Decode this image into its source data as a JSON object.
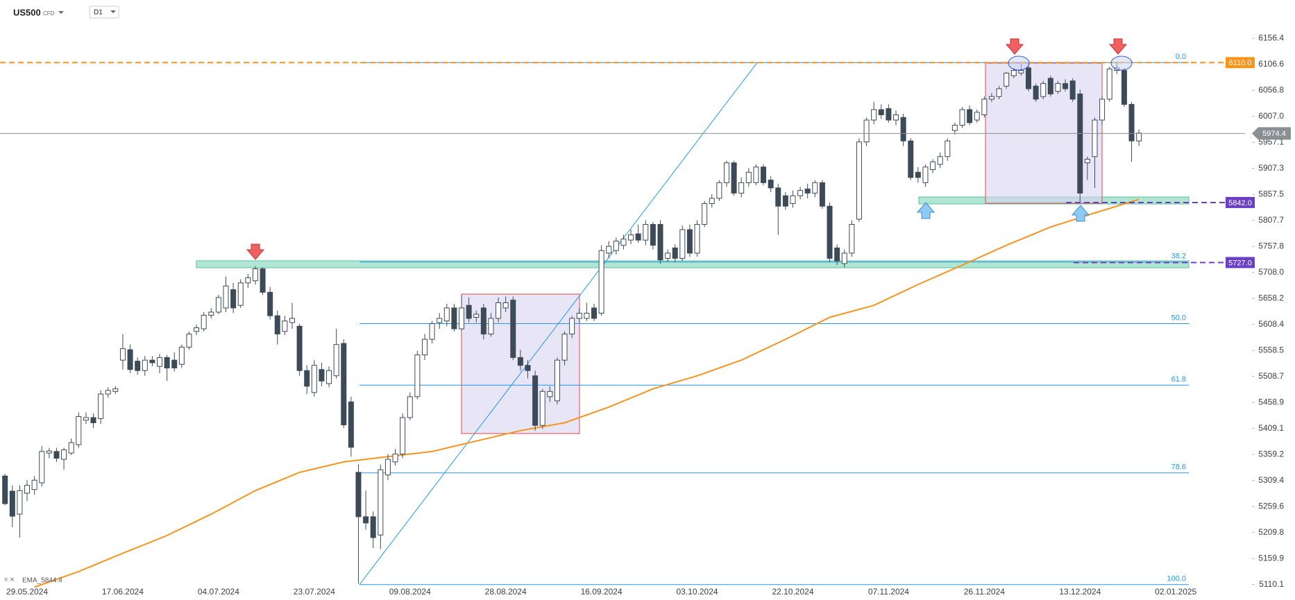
{
  "header": {
    "symbol": "US500",
    "tag": "CFD",
    "timeframe": "D1"
  },
  "chart_data": {
    "type": "candlestick",
    "categories": [
      null,
      null,
      null,
      "29.05.2024",
      null,
      null,
      null,
      null,
      null,
      null,
      null,
      null,
      null,
      null,
      null,
      null,
      "17.06.2024",
      null,
      null,
      null,
      null,
      null,
      null,
      null,
      null,
      null,
      null,
      null,
      null,
      "04.07.2024",
      null,
      null,
      null,
      null,
      null,
      null,
      null,
      null,
      null,
      null,
      null,
      null,
      "23.07.2024",
      null,
      null,
      null,
      null,
      null,
      null,
      null,
      null,
      null,
      null,
      null,
      null,
      "09.08.2024",
      null,
      null,
      null,
      null,
      null,
      null,
      null,
      null,
      null,
      null,
      null,
      null,
      "28.08.2024",
      null,
      null,
      null,
      null,
      null,
      null,
      null,
      null,
      null,
      null,
      null,
      null,
      "16.09.2024",
      null,
      null,
      null,
      null,
      null,
      null,
      null,
      null,
      null,
      null,
      null,
      null,
      "03.10.2024",
      null,
      null,
      null,
      null,
      null,
      null,
      null,
      null,
      null,
      null,
      null,
      null,
      "22.10.2024",
      null,
      null,
      null,
      null,
      null,
      null,
      null,
      null,
      null,
      null,
      null,
      null,
      "07.11.2024",
      null,
      null,
      null,
      null,
      null,
      null,
      null,
      null,
      null,
      null,
      null,
      null,
      "26.11.2024",
      null,
      null,
      null,
      null,
      null,
      null,
      null,
      null,
      null,
      null,
      null,
      null,
      "13.12.2024",
      null,
      null,
      null,
      null,
      null,
      null,
      null,
      null,
      null,
      null,
      null,
      null,
      "02.01.2025"
    ],
    "open": [
      5318,
      5289,
      5245,
      5285,
      5292,
      5305,
      5362,
      5365,
      5350,
      5362,
      5378,
      5425,
      5430,
      5428,
      5475,
      5480,
      5540,
      5560,
      5538,
      5520,
      5540,
      5528,
      5545,
      5540,
      5532,
      5565,
      5595,
      5600,
      5626,
      5632,
      5640,
      5675,
      5645,
      5688,
      5692,
      5715,
      5670,
      5625,
      5595,
      5612,
      5605,
      5520,
      5478,
      5522,
      5495,
      5510,
      5572,
      5460,
      5325,
      5240,
      5240,
      5205,
      5320,
      5345,
      5360,
      5430,
      5470,
      5550,
      5580,
      5612,
      5615,
      5640,
      5600,
      5645,
      5622,
      5640,
      5590,
      5620,
      5640,
      5655,
      5545,
      5530,
      5510,
      5415,
      5470,
      5462,
      5540,
      5590,
      5620,
      5620,
      5640,
      5630,
      5745,
      5750,
      5760,
      5770,
      5782,
      5770,
      5800,
      5800,
      5735,
      5755,
      5735,
      5790,
      5745,
      5800,
      5840,
      5850,
      5880,
      5918,
      5860,
      5880,
      5880,
      5910,
      5885,
      5870,
      5855,
      5840,
      5855,
      5868,
      5860,
      5880,
      5835,
      5755,
      5725,
      5745,
      5810,
      5958,
      6000,
      6020,
      6022,
      6000,
      6005,
      5960,
      5900,
      5880,
      5905,
      5915,
      5930,
      5980,
      5990,
      6020,
      6000,
      6010,
      6040,
      6045,
      6065,
      6085,
      6090,
      6100,
      6065,
      6045,
      6080,
      6055,
      6070,
      6075,
      6050,
      5918,
      5930,
      6000,
      6040,
      6095,
      6095,
      6030,
      5960,
      null,
      null,
      null,
      null,
      null
    ],
    "high": [
      5322,
      5300,
      5300,
      5310,
      5318,
      5375,
      5372,
      5372,
      5372,
      5390,
      5440,
      5440,
      5438,
      5482,
      5488,
      5490,
      5590,
      5570,
      5545,
      5548,
      5548,
      5552,
      5550,
      5555,
      5570,
      5595,
      5608,
      5632,
      5640,
      5665,
      5700,
      5688,
      5695,
      5705,
      5720,
      5718,
      5680,
      5635,
      5625,
      5650,
      5610,
      5530,
      5540,
      5535,
      5528,
      5600,
      5580,
      5470,
      5340,
      5290,
      5250,
      5340,
      5360,
      5370,
      5438,
      5478,
      5558,
      5590,
      5615,
      5630,
      5648,
      5648,
      5665,
      5660,
      5635,
      5648,
      5630,
      5660,
      5662,
      5662,
      5560,
      5540,
      5520,
      5485,
      5490,
      5545,
      5595,
      5625,
      5640,
      5650,
      5648,
      5760,
      5768,
      5775,
      5780,
      5790,
      5800,
      5808,
      5805,
      5808,
      5752,
      5762,
      5798,
      5800,
      5808,
      5845,
      5858,
      5885,
      5922,
      5922,
      5890,
      5908,
      5915,
      5915,
      5892,
      5878,
      5862,
      5865,
      5872,
      5878,
      5885,
      5885,
      5842,
      5762,
      5752,
      5808,
      5965,
      6005,
      6035,
      6030,
      6030,
      6018,
      6012,
      5965,
      5910,
      5915,
      5925,
      5938,
      5965,
      5995,
      6025,
      6028,
      6020,
      6045,
      6052,
      6065,
      6092,
      6100,
      6108,
      6108,
      6070,
      6075,
      6085,
      6075,
      6078,
      6080,
      6058,
      5930,
      6005,
      6045,
      6102,
      6112,
      6100,
      6035,
      5982,
      null,
      null,
      null,
      null,
      null
    ],
    "low": [
      5262,
      5220,
      5200,
      5270,
      5282,
      5298,
      5352,
      5345,
      5330,
      5358,
      5372,
      5418,
      5410,
      5418,
      5468,
      5475,
      5522,
      5515,
      5512,
      5510,
      5528,
      5515,
      5500,
      5518,
      5525,
      5560,
      5588,
      5595,
      5620,
      5628,
      5632,
      5630,
      5640,
      5678,
      5685,
      5665,
      5618,
      5570,
      5588,
      5600,
      5510,
      5475,
      5470,
      5490,
      5488,
      5505,
      5410,
      5355,
      5112,
      5215,
      5180,
      5178,
      5310,
      5338,
      5352,
      5425,
      5465,
      5540,
      5572,
      5600,
      5605,
      5595,
      5595,
      5612,
      5612,
      5580,
      5585,
      5612,
      5632,
      5540,
      5520,
      5505,
      5405,
      5408,
      5460,
      5455,
      5530,
      5582,
      5612,
      5615,
      5615,
      5625,
      5735,
      5742,
      5752,
      5762,
      5765,
      5760,
      5752,
      5725,
      5728,
      5728,
      5730,
      5738,
      5738,
      5795,
      5832,
      5845,
      5872,
      5855,
      5852,
      5872,
      5875,
      5875,
      5862,
      5780,
      5828,
      5832,
      5848,
      5850,
      5852,
      5830,
      5728,
      5722,
      5718,
      5738,
      5805,
      5950,
      5992,
      6002,
      5995,
      5990,
      5950,
      5885,
      5880,
      5872,
      5898,
      5908,
      5922,
      5972,
      5985,
      5990,
      5995,
      6005,
      6035,
      6040,
      6060,
      6080,
      6085,
      6055,
      6035,
      6040,
      6045,
      6050,
      6055,
      6035,
      5842,
      5885,
      5870,
      5990,
      6035,
      6088,
      6025,
      5920,
      5950,
      null,
      null,
      null,
      null,
      null
    ],
    "close": [
      5265,
      5241,
      5290,
      5300,
      5310,
      5365,
      5366,
      5352,
      5368,
      5382,
      5432,
      5430,
      5420,
      5475,
      5482,
      5485,
      5562,
      5522,
      5520,
      5540,
      5535,
      5545,
      5525,
      5525,
      5565,
      5590,
      5602,
      5626,
      5632,
      5660,
      5682,
      5640,
      5688,
      5698,
      5715,
      5670,
      5625,
      5590,
      5615,
      5620,
      5520,
      5490,
      5530,
      5500,
      5520,
      5570,
      5416,
      5373,
      5240,
      5228,
      5200,
      5330,
      5350,
      5360,
      5430,
      5470,
      5550,
      5580,
      5610,
      5620,
      5640,
      5600,
      5640,
      5620,
      5628,
      5590,
      5620,
      5650,
      5650,
      5545,
      5530,
      5520,
      5415,
      5480,
      5480,
      5540,
      5590,
      5620,
      5630,
      5630,
      5620,
      5750,
      5758,
      5768,
      5772,
      5780,
      5770,
      5800,
      5760,
      5732,
      5745,
      5735,
      5790,
      5745,
      5800,
      5840,
      5850,
      5880,
      5918,
      5860,
      5880,
      5900,
      5910,
      5880,
      5870,
      5835,
      5835,
      5855,
      5865,
      5860,
      5880,
      5835,
      5735,
      5730,
      5745,
      5800,
      5958,
      6000,
      6020,
      6010,
      6000,
      6010,
      5960,
      5890,
      5890,
      5910,
      5920,
      5930,
      5960,
      5990,
      6020,
      5995,
      6015,
      6040,
      6045,
      6060,
      6090,
      6095,
      6095,
      6060,
      6040,
      6070,
      6050,
      6070,
      6060,
      6040,
      5860,
      5925,
      6000,
      6040,
      6098,
      6100,
      6030,
      5960,
      5975,
      null,
      null,
      null,
      null,
      null
    ],
    "up_color": "#ffffff",
    "down_color": "#3d4a57",
    "ylim": [
      5105,
      6230
    ],
    "yticks": [
      6156.4,
      6106.6,
      6056.8,
      {
        "value": 6007,
        "label": "6007.0"
      },
      5957.1,
      5907.3,
      5857.5,
      5807.7,
      5757.8,
      {
        "value": 5708,
        "label": "5708.0"
      },
      5658.2,
      5608.4,
      5558.5,
      5508.7,
      5458.9,
      5409.1,
      5359.2,
      5309.4,
      5259.6,
      5209.8,
      5159.9,
      5110.1
    ],
    "ema": {
      "name": "EMA_5844.4",
      "color": "#f7941d",
      "x": [
        4,
        10,
        16,
        22,
        28,
        34,
        40,
        46,
        52,
        58,
        64,
        70,
        76,
        82,
        88,
        94,
        100,
        106,
        112,
        118,
        124,
        130,
        136,
        142,
        148,
        154
      ],
      "values": [
        5105,
        5135,
        5170,
        5204,
        5245,
        5290,
        5325,
        5345,
        5355,
        5365,
        5385,
        5405,
        5420,
        5450,
        5485,
        5510,
        5540,
        5580,
        5622,
        5645,
        5685,
        5722,
        5760,
        5795,
        5822,
        5848
      ]
    },
    "levels": [
      {
        "value": 6110,
        "label": "6110.0",
        "color": "#f7941d"
      },
      {
        "value": 5974.4,
        "label": "5974.4",
        "color": "#8a8f94"
      },
      {
        "value": 5842,
        "label": "5842.0",
        "color": "#6b3fc4"
      },
      {
        "value": 5727,
        "label": "5727.0",
        "color": "#6b3fc4"
      }
    ],
    "fib_color": "#2196f3",
    "fib_levels": [
      {
        "label": "0.0",
        "value": 6110
      },
      {
        "label": "38.2",
        "value": 5728
      },
      {
        "label": "50.0",
        "value": 5610
      },
      {
        "label": "61.8",
        "value": 5492
      },
      {
        "label": "78.6",
        "value": 5324
      },
      {
        "label": "100.0",
        "value": 5110
      }
    ]
  }
}
